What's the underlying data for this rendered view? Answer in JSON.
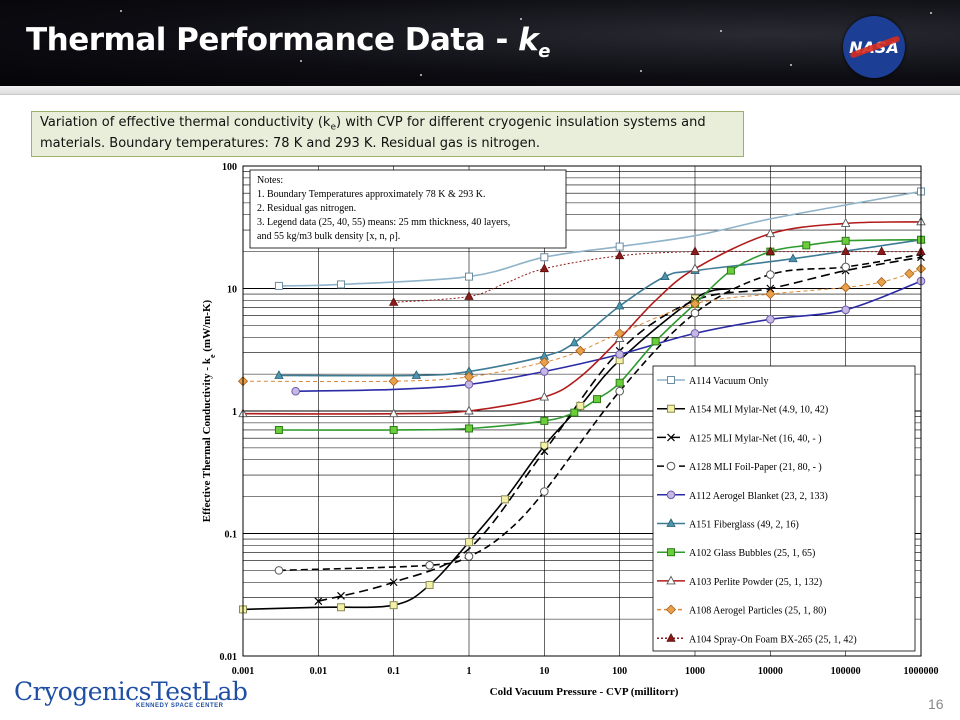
{
  "slide": {
    "title": "Thermal Performance Data - ",
    "title_symbol": "k",
    "title_subscript": "e",
    "logo_text": "NASA",
    "caption_part1": "Variation of effective thermal conductivity (k",
    "caption_sub": "e",
    "caption_part2": ") with CVP for different cryogenic insulation systems and materials. Boundary temperatures: 78 K and 293 K. Residual gas is nitrogen.",
    "footer_logo": "CryogenicsTestLab",
    "footer_sub": "KENNEDY SPACE CENTER",
    "slide_number": "16"
  },
  "notes": {
    "heading": "Notes:",
    "line1": "1. Boundary Temperatures approximately 78 K  & 293 K.",
    "line2": "2. Residual gas nitrogen.",
    "line3": "3. Legend data (25, 40, 55) means: 25 mm  thickness, 40 layers,",
    "line4": "and 55 kg/m3 bulk density [x, n, ρ]."
  },
  "colors": {
    "axis": "#000000",
    "grid": "#000000"
  },
  "chart_data": {
    "type": "line",
    "title": "",
    "xlabel": "Cold Vacuum Pressure - CVP (millitorr)",
    "ylabel": "Effective Thermal Conductivity - ke (mW/m-K)",
    "xscale": "log",
    "yscale": "log",
    "xlim": [
      0.001,
      1000000
    ],
    "ylim": [
      0.01,
      100
    ],
    "x_ticks": [
      "0.001",
      "0.01",
      "0.1",
      "1",
      "10",
      "100",
      "1000",
      "10000",
      "100000",
      "1000000"
    ],
    "y_ticks": [
      "0.01",
      "0.1",
      "1",
      "10",
      "100"
    ],
    "legend_position": "bottom-right",
    "series": [
      {
        "name": "A114 Vacuum Only",
        "color": "#8fb3c8",
        "marker": "square",
        "dash": "solid",
        "markers": [
          [
            0.003,
            10.5
          ],
          [
            0.02,
            10.8
          ],
          [
            1,
            12.5
          ],
          [
            10,
            18
          ],
          [
            100,
            22
          ],
          [
            1000000,
            62
          ]
        ],
        "curve": [
          [
            0.003,
            10.5
          ],
          [
            0.02,
            10.8
          ],
          [
            1,
            12.5
          ],
          [
            10,
            18
          ],
          [
            100,
            22
          ],
          [
            1000,
            27
          ],
          [
            10000,
            37
          ],
          [
            100000,
            48
          ],
          [
            1000000,
            62
          ]
        ]
      },
      {
        "name": "A154 MLI Mylar-Net (4.9, 10, 42)",
        "color": "#000000",
        "marker": "square-yellow",
        "dash": "solid",
        "markers": [
          [
            0.001,
            0.024
          ],
          [
            0.02,
            0.025
          ],
          [
            0.1,
            0.026
          ],
          [
            0.3,
            0.038
          ],
          [
            1,
            0.085
          ],
          [
            3,
            0.19
          ],
          [
            10,
            0.52
          ],
          [
            30,
            1.1
          ],
          [
            100,
            2.6
          ],
          [
            1000,
            8.3
          ]
        ],
        "curve": [
          [
            0.001,
            0.024
          ],
          [
            0.01,
            0.025
          ],
          [
            0.1,
            0.026
          ],
          [
            0.3,
            0.038
          ],
          [
            1,
            0.085
          ],
          [
            3,
            0.19
          ],
          [
            10,
            0.52
          ],
          [
            30,
            1.1
          ],
          [
            100,
            2.6
          ],
          [
            1000,
            8.3
          ],
          [
            3000,
            10
          ]
        ]
      },
      {
        "name": "A125 MLI Mylar-Net (16, 40, - )",
        "color": "#000000",
        "marker": "x",
        "dash": "longdash",
        "markers": [
          [
            0.01,
            0.028
          ],
          [
            0.02,
            0.031
          ],
          [
            0.1,
            0.04
          ],
          [
            10,
            0.47
          ],
          [
            100,
            3.1
          ],
          [
            1000,
            8.0
          ],
          [
            10000,
            10
          ],
          [
            100000,
            14
          ],
          [
            1000000,
            18
          ]
        ],
        "curve": [
          [
            0.01,
            0.028
          ],
          [
            0.1,
            0.04
          ],
          [
            1,
            0.075
          ],
          [
            10,
            0.47
          ],
          [
            100,
            3.1
          ],
          [
            1000,
            8.0
          ],
          [
            10000,
            10
          ],
          [
            100000,
            14
          ],
          [
            1000000,
            18
          ]
        ]
      },
      {
        "name": "A128 MLI Foil-Paper (21, 80, - )",
        "color": "#000000",
        "marker": "circle",
        "dash": "dashed",
        "markers": [
          [
            0.003,
            0.05
          ],
          [
            0.3,
            0.055
          ],
          [
            1,
            0.065
          ],
          [
            10,
            0.22
          ],
          [
            100,
            1.45
          ],
          [
            1000,
            6.3
          ],
          [
            10000,
            13
          ],
          [
            100000,
            15
          ]
        ],
        "curve": [
          [
            0.003,
            0.05
          ],
          [
            0.3,
            0.055
          ],
          [
            1,
            0.065
          ],
          [
            3,
            0.1
          ],
          [
            10,
            0.22
          ],
          [
            100,
            1.45
          ],
          [
            1000,
            6.3
          ],
          [
            10000,
            13
          ],
          [
            100000,
            15
          ],
          [
            1000000,
            19
          ]
        ]
      },
      {
        "name": "A112 Aerogel Blanket (23, 2, 133)",
        "color": "#2b2ba6",
        "marker": "circle-purple",
        "dash": "solid",
        "markers": [
          [
            0.005,
            1.45
          ],
          [
            1,
            1.65
          ],
          [
            10,
            2.1
          ],
          [
            100,
            2.9
          ],
          [
            1000,
            4.3
          ],
          [
            10000,
            5.6
          ],
          [
            100000,
            6.7
          ],
          [
            1000000,
            11.5
          ]
        ],
        "curve": [
          [
            0.005,
            1.45
          ],
          [
            0.1,
            1.5
          ],
          [
            1,
            1.65
          ],
          [
            10,
            2.1
          ],
          [
            100,
            2.9
          ],
          [
            1000,
            4.3
          ],
          [
            10000,
            5.6
          ],
          [
            100000,
            6.7
          ],
          [
            1000000,
            11.5
          ]
        ]
      },
      {
        "name": "A151 Fiberglass (49, 2, 16)",
        "color": "#3e7c95",
        "marker": "triangle-teal",
        "dash": "solid",
        "markers": [
          [
            0.003,
            1.95
          ],
          [
            0.2,
            1.95
          ],
          [
            1,
            2.1
          ],
          [
            10,
            2.8
          ],
          [
            25,
            3.6
          ],
          [
            100,
            7.2
          ],
          [
            400,
            12.5
          ],
          [
            1000,
            14
          ],
          [
            20000,
            17.5
          ],
          [
            1000000,
            25
          ]
        ],
        "curve": [
          [
            0.003,
            1.95
          ],
          [
            0.2,
            1.95
          ],
          [
            1,
            2.1
          ],
          [
            10,
            2.8
          ],
          [
            25,
            3.6
          ],
          [
            100,
            7.2
          ],
          [
            400,
            12.5
          ],
          [
            1000,
            14
          ],
          [
            20000,
            17.5
          ],
          [
            1000000,
            25
          ]
        ]
      },
      {
        "name": "A102 Glass Bubbles (25, 1, 65)",
        "color": "#2f9a2f",
        "marker": "square-green",
        "dash": "solid",
        "markers": [
          [
            0.003,
            0.7
          ],
          [
            0.1,
            0.7
          ],
          [
            1,
            0.72
          ],
          [
            10,
            0.83
          ],
          [
            25,
            0.97
          ],
          [
            50,
            1.25
          ],
          [
            100,
            1.7
          ],
          [
            300,
            3.7
          ],
          [
            1000,
            7.5
          ],
          [
            3000,
            14
          ],
          [
            10000,
            20
          ],
          [
            30000,
            22.5
          ],
          [
            100000,
            24.5
          ],
          [
            1000000,
            25
          ]
        ],
        "curve": [
          [
            0.003,
            0.7
          ],
          [
            0.1,
            0.7
          ],
          [
            1,
            0.72
          ],
          [
            10,
            0.83
          ],
          [
            25,
            0.97
          ],
          [
            50,
            1.25
          ],
          [
            100,
            1.7
          ],
          [
            300,
            3.7
          ],
          [
            1000,
            7.5
          ],
          [
            3000,
            14
          ],
          [
            10000,
            20
          ],
          [
            30000,
            22.5
          ],
          [
            100000,
            24.5
          ],
          [
            1000000,
            25
          ]
        ]
      },
      {
        "name": "A103 Perlite Powder (25, 1, 132)",
        "color": "#b31b1b",
        "marker": "triangle-white",
        "dash": "solid",
        "markers": [
          [
            0.001,
            0.95
          ],
          [
            0.1,
            0.95
          ],
          [
            1,
            1.0
          ],
          [
            10,
            1.3
          ],
          [
            100,
            3.9
          ],
          [
            1000,
            14.5
          ],
          [
            10000,
            28
          ],
          [
            100000,
            34
          ],
          [
            1000000,
            35
          ]
        ],
        "curve": [
          [
            0.001,
            0.95
          ],
          [
            0.1,
            0.95
          ],
          [
            1,
            1.0
          ],
          [
            10,
            1.3
          ],
          [
            30,
            1.9
          ],
          [
            100,
            3.9
          ],
          [
            300,
            8
          ],
          [
            1000,
            14.5
          ],
          [
            10000,
            28
          ],
          [
            100000,
            34
          ],
          [
            1000000,
            35
          ]
        ]
      },
      {
        "name": "A108 Aerogel Particles (25, 1, 80)",
        "color": "#d98a3a",
        "marker": "diamond-orange",
        "dash": "shortdash",
        "markers": [
          [
            0.001,
            1.75
          ],
          [
            0.1,
            1.75
          ],
          [
            1,
            1.9
          ],
          [
            10,
            2.5
          ],
          [
            30,
            3.1
          ],
          [
            100,
            4.3
          ],
          [
            1000,
            7.5
          ],
          [
            10000,
            9
          ],
          [
            100000,
            10.2
          ],
          [
            300000,
            11.3
          ],
          [
            700000,
            13.2
          ],
          [
            1000000,
            14.5
          ]
        ],
        "curve": [
          [
            0.001,
            1.75
          ],
          [
            0.1,
            1.75
          ],
          [
            1,
            1.9
          ],
          [
            10,
            2.5
          ],
          [
            30,
            3.1
          ],
          [
            100,
            4.3
          ],
          [
            1000,
            7.5
          ],
          [
            10000,
            9
          ],
          [
            100000,
            10.2
          ],
          [
            300000,
            11.3
          ],
          [
            700000,
            13.2
          ],
          [
            1000000,
            14.5
          ]
        ]
      },
      {
        "name": "A104 Spray-On Foam BX-265 (25, 1, 42)",
        "color": "#8b1a1a",
        "marker": "triangle-darkred",
        "dash": "dotted",
        "markers": [
          [
            0.1,
            7.7
          ],
          [
            1,
            8.6
          ],
          [
            10,
            14.5
          ],
          [
            100,
            18.5
          ],
          [
            1000,
            20
          ],
          [
            10000,
            20
          ],
          [
            100000,
            20
          ],
          [
            300000,
            20
          ],
          [
            1000000,
            20
          ]
        ],
        "curve": [
          [
            0.1,
            7.7
          ],
          [
            1,
            8.6
          ],
          [
            3,
            11
          ],
          [
            10,
            14.5
          ],
          [
            100,
            18.5
          ],
          [
            1000,
            20
          ],
          [
            10000,
            20
          ],
          [
            1000000,
            20
          ]
        ]
      }
    ]
  }
}
